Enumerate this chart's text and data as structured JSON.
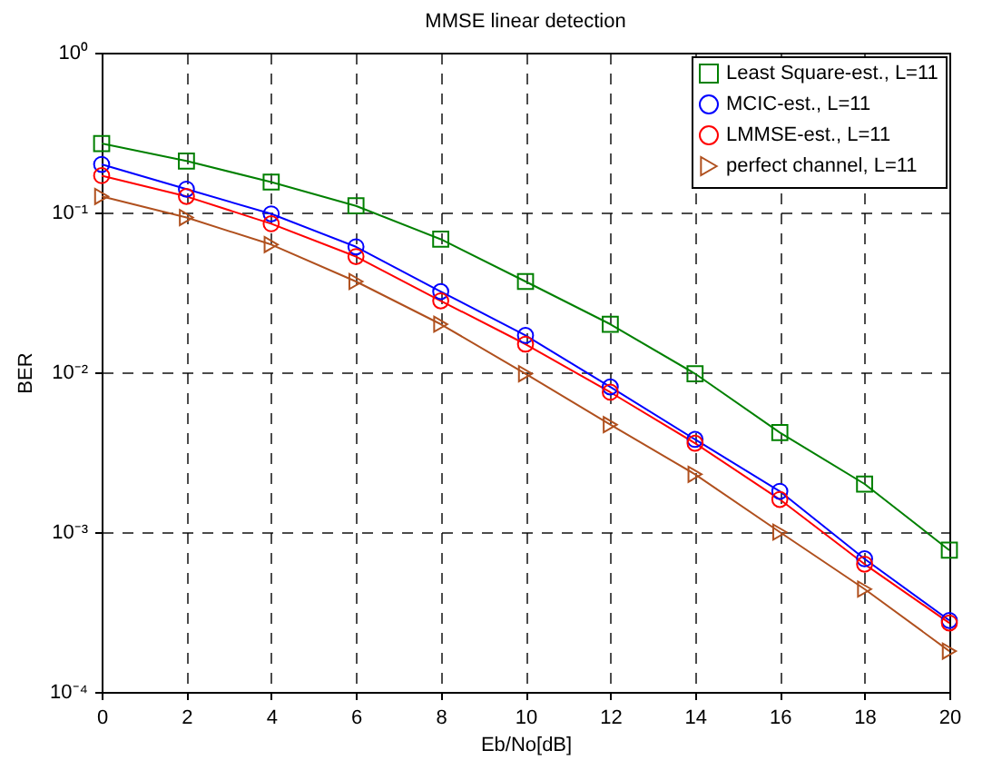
{
  "chart_data": {
    "type": "line",
    "title": "MMSE linear detection",
    "xlabel": "Eb/No[dB]",
    "ylabel": "BER",
    "x": [
      0,
      2,
      4,
      6,
      8,
      10,
      12,
      14,
      16,
      18,
      20
    ],
    "series": [
      {
        "name": "Least Square-est., L=11",
        "color": "#008000",
        "marker": "square",
        "values": [
          0.27,
          0.21,
          0.155,
          0.11,
          0.068,
          0.037,
          0.02,
          0.0098,
          0.0042,
          0.002,
          0.00077
        ]
      },
      {
        "name": "MCIC-est., L=11",
        "color": "#0000ff",
        "marker": "circle",
        "values": [
          0.2,
          0.14,
          0.098,
          0.061,
          0.032,
          0.017,
          0.0081,
          0.0038,
          0.0018,
          0.00068,
          0.00028
        ]
      },
      {
        "name": "LMMSE-est., L=11",
        "color": "#ff0000",
        "marker": "circle",
        "values": [
          0.17,
          0.126,
          0.085,
          0.053,
          0.028,
          0.015,
          0.0075,
          0.0036,
          0.0016,
          0.00063,
          0.00027
        ]
      },
      {
        "name": "perfect channel, L=11",
        "color": "#b0501e",
        "marker": "triangle",
        "values": [
          0.126,
          0.093,
          0.063,
          0.037,
          0.02,
          0.0098,
          0.0047,
          0.0023,
          0.001,
          0.00044,
          0.00018
        ]
      }
    ],
    "log": "y",
    "xlim": [
      0,
      20
    ],
    "xticks": [
      0,
      2,
      4,
      6,
      8,
      10,
      12,
      14,
      16,
      18,
      20
    ],
    "ylim": [
      0.0001,
      1
    ],
    "yticks": [
      {
        "value": 0.0001,
        "label": "10⁻⁴"
      },
      {
        "value": 0.001,
        "label": "10⁻³"
      },
      {
        "value": 0.01,
        "label": "10⁻²"
      },
      {
        "value": 0.1,
        "label": "10⁻¹"
      },
      {
        "value": 1,
        "label": "10⁰"
      }
    ],
    "grid": true,
    "legend": "top right",
    "line_style": "solid"
  }
}
